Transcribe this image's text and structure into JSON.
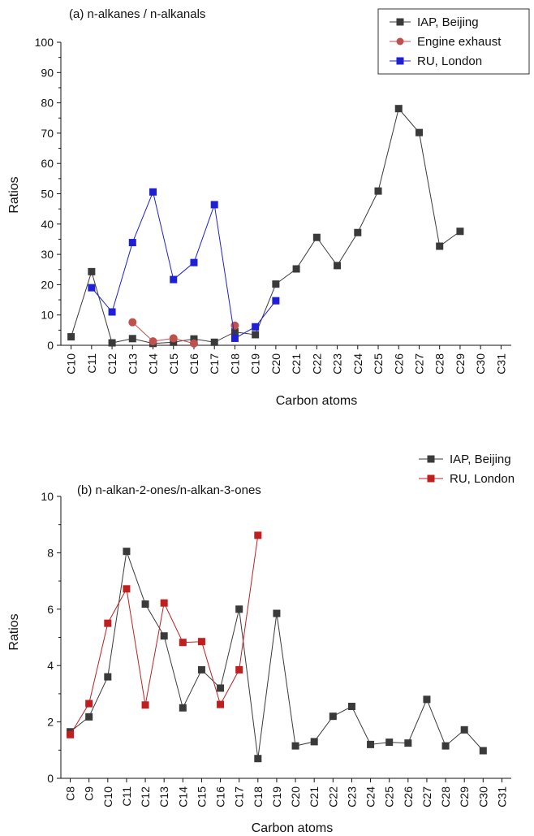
{
  "chart_data": [
    {
      "type": "line",
      "title": "(a)  n-alkanes / n-alkanals",
      "xlabel": "Carbon atoms",
      "ylabel": "Ratios",
      "categories": [
        "C10",
        "C11",
        "C12",
        "C13",
        "C14",
        "C15",
        "C16",
        "C17",
        "C18",
        "C19",
        "C20",
        "C21",
        "C22",
        "C23",
        "C24",
        "C25",
        "C26",
        "C27",
        "C28",
        "C29",
        "C30",
        "C31"
      ],
      "ylim": [
        0,
        100
      ],
      "yticks": [
        0,
        10,
        20,
        30,
        40,
        50,
        60,
        70,
        80,
        90,
        100
      ],
      "grid": false,
      "legend_placement": "top-right",
      "series": [
        {
          "name": "IAP, Beijing",
          "color": "#3a3a3a",
          "marker": "square",
          "values": [
            2.8,
            24.3,
            0.8,
            2.2,
            0.6,
            1.0,
            2.1,
            1.0,
            4.4,
            3.5,
            20.2,
            25.2,
            35.6,
            26.3,
            37.2,
            50.9,
            78.1,
            70.2,
            32.7,
            37.6,
            null,
            null
          ]
        },
        {
          "name": "Engine exhaust",
          "color": "#c0504d",
          "marker": "circle",
          "values": [
            null,
            null,
            null,
            7.6,
            1.3,
            2.3,
            0.6,
            null,
            6.5,
            null,
            null,
            null,
            null,
            null,
            null,
            null,
            null,
            null,
            null,
            null,
            null,
            null
          ]
        },
        {
          "name": "RU, London",
          "color": "#1f1fd6",
          "marker": "square",
          "values": [
            null,
            19.0,
            11.0,
            33.9,
            50.6,
            21.7,
            27.3,
            46.4,
            2.3,
            6.1,
            14.7,
            null,
            null,
            null,
            null,
            null,
            null,
            null,
            null,
            null,
            null,
            null
          ]
        }
      ]
    },
    {
      "type": "line",
      "title": "(b) n-alkan-2-ones/n-alkan-3-ones",
      "xlabel": "Carbon atoms",
      "ylabel": "Ratios",
      "categories": [
        "C8",
        "C9",
        "C10",
        "C11",
        "C12",
        "C13",
        "C14",
        "C15",
        "C16",
        "C17",
        "C18",
        "C19",
        "C20",
        "C21",
        "C22",
        "C23",
        "C24",
        "C25",
        "C26",
        "C27",
        "C28",
        "C29",
        "C30",
        "C31"
      ],
      "ylim": [
        0,
        10
      ],
      "yticks": [
        0,
        2,
        4,
        6,
        8,
        10
      ],
      "grid": false,
      "legend_placement": "top-right",
      "series": [
        {
          "name": "IAP, Beijing",
          "color": "#3a3a3a",
          "marker": "square",
          "values": [
            1.65,
            2.18,
            3.6,
            8.05,
            6.18,
            5.05,
            2.5,
            3.85,
            3.2,
            6.0,
            0.7,
            5.85,
            1.15,
            1.3,
            2.2,
            2.55,
            1.2,
            1.28,
            1.25,
            2.8,
            1.15,
            1.72,
            0.98,
            null
          ]
        },
        {
          "name": "RU, London",
          "color": "#c01f1f",
          "marker": "square",
          "values": [
            1.55,
            2.65,
            5.5,
            6.72,
            2.6,
            6.22,
            4.82,
            4.85,
            2.62,
            3.85,
            8.62,
            null,
            null,
            null,
            null,
            null,
            null,
            null,
            null,
            null,
            null,
            null,
            null,
            null
          ]
        }
      ]
    }
  ]
}
